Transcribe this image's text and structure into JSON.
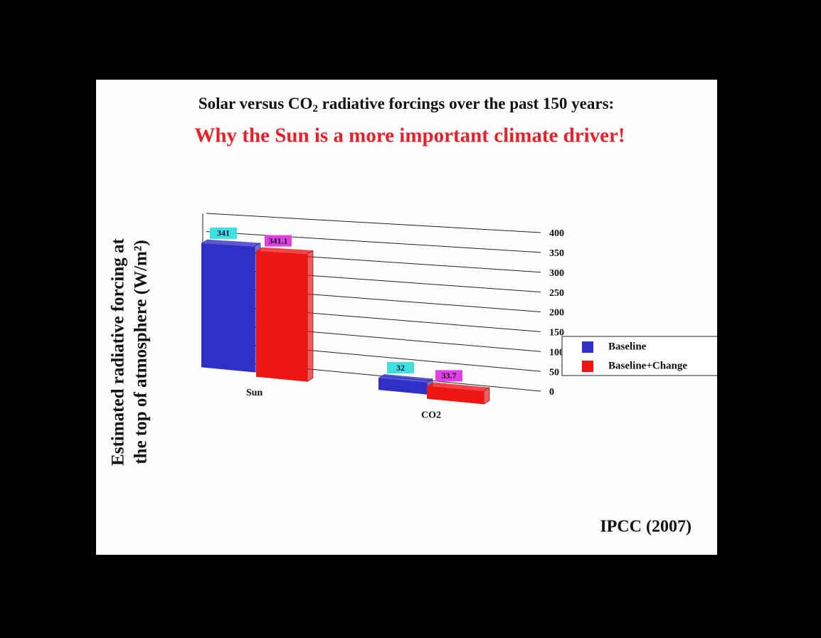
{
  "chart_data": {
    "type": "bar3d",
    "title": [
      "Solar versus CO",
      "2",
      " radiative forcings over the past 150 years:"
    ],
    "subtitle": "Why the Sun is a more important climate driver!",
    "ylabel": [
      "Estimated radiative forcing at",
      "the top of atmosphere (W/m²)"
    ],
    "source": "IPCC (2007)",
    "categories": [
      "Sun",
      "CO2"
    ],
    "series": [
      {
        "name": "Baseline",
        "color": "#3030c8",
        "label_color": "#40e0e0",
        "values": [
          341.0,
          32.0
        ]
      },
      {
        "name": "Baseline+Change",
        "color": "#ee1515",
        "label_color": "#e040e0",
        "values": [
          341.1,
          33.7
        ]
      }
    ],
    "ylim": [
      0,
      400
    ],
    "yticks": [
      0,
      50,
      100,
      150,
      200,
      250,
      300,
      350,
      400
    ],
    "grid": true
  }
}
